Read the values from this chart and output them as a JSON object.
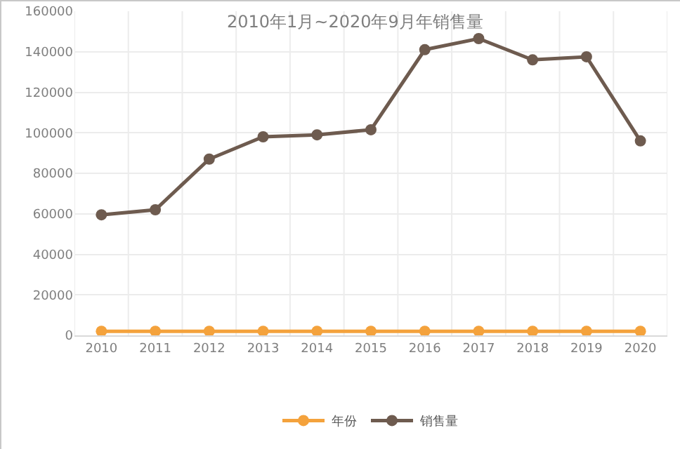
{
  "chart_data": {
    "type": "line",
    "title": "2010年1月~2020年9月年销售量",
    "categories": [
      "2010",
      "2011",
      "2012",
      "2013",
      "2014",
      "2015",
      "2016",
      "2017",
      "2018",
      "2019",
      "2020"
    ],
    "series": [
      {
        "name": "年份",
        "color": "#f4a23c",
        "values": [
          2010,
          2011,
          2012,
          2013,
          2014,
          2015,
          2016,
          2017,
          2018,
          2019,
          2020
        ]
      },
      {
        "name": "销售量",
        "color": "#6e5b4f",
        "values": [
          59500,
          62000,
          87000,
          98000,
          99000,
          101500,
          141000,
          146500,
          136000,
          137500,
          96000
        ]
      }
    ],
    "ylim": [
      0,
      160000
    ],
    "yticks": [
      0,
      20000,
      40000,
      60000,
      80000,
      100000,
      120000,
      140000,
      160000
    ],
    "grid": true,
    "legend": "bottom",
    "marker": "circle",
    "line_style": "solid"
  }
}
